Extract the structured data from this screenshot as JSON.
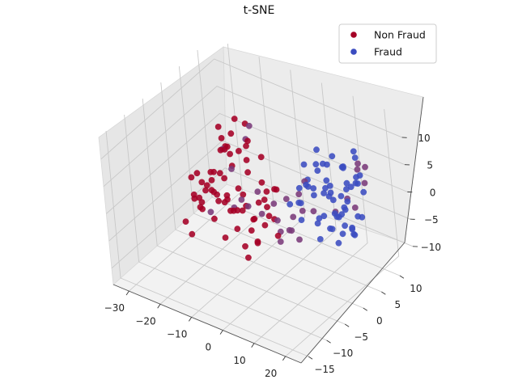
{
  "chart_data": {
    "type": "scatter",
    "projection": "3d",
    "title": "t-SNE",
    "xlabel": "",
    "ylabel": "",
    "zlabel": "",
    "xlim": [
      -35,
      25
    ],
    "ylim": [
      -17,
      14
    ],
    "zlim": [
      -13,
      14
    ],
    "x_ticks": [
      -30,
      -20,
      -10,
      0,
      10,
      20
    ],
    "y_ticks": [
      -15,
      -10,
      -5,
      0,
      5,
      10
    ],
    "z_ticks": [
      -10,
      -5,
      0,
      5,
      10
    ],
    "x_tick_labels": [
      "−30",
      "−20",
      "−10",
      "0",
      "10",
      "20"
    ],
    "y_tick_labels": [
      "−15",
      "−10",
      "−5",
      "0",
      "5",
      "10"
    ],
    "z_tick_labels": [
      "−10",
      "−5",
      "0",
      "5",
      "10"
    ],
    "grid": true,
    "legend_position": "top-right",
    "colors": {
      "Non Fraud": "#a50026",
      "Fraud": "#3b4cc0",
      "mixed": "#7a3a7a"
    },
    "series": [
      {
        "name": "Non Fraud",
        "color": "#a50026",
        "points": [
          [
            -25,
            -2,
            -3
          ],
          [
            -24,
            -1,
            -6
          ],
          [
            -23,
            0,
            -2
          ],
          [
            -22,
            -3,
            -4
          ],
          [
            -21,
            1,
            -5
          ],
          [
            -26,
            -4,
            -7
          ],
          [
            -24,
            2,
            -1
          ],
          [
            -22,
            -2,
            0
          ],
          [
            -20,
            0,
            -3
          ],
          [
            -23,
            -5,
            -8
          ],
          [
            -19,
            -2,
            -6
          ],
          [
            -21,
            3,
            -2
          ],
          [
            -18,
            1,
            -4
          ],
          [
            -25,
            1,
            -4
          ],
          [
            -20,
            -4,
            -2
          ],
          [
            -17,
            -3,
            0
          ],
          [
            -16,
            0,
            -5
          ],
          [
            -18,
            3,
            1
          ],
          [
            -22,
            4,
            -6
          ],
          [
            -19,
            -1,
            2
          ],
          [
            -15,
            -2,
            -2
          ],
          [
            -14,
            1,
            -1
          ],
          [
            -16,
            -4,
            3
          ],
          [
            -13,
            -1,
            -7
          ],
          [
            -17,
            2,
            4
          ],
          [
            -12,
            0,
            -4
          ],
          [
            -11,
            -3,
            -2
          ],
          [
            -13,
            3,
            1
          ],
          [
            -10,
            -1,
            0
          ],
          [
            -12,
            -5,
            -6
          ],
          [
            -14,
            4,
            5
          ],
          [
            -9,
            2,
            -3
          ],
          [
            -15,
            -5,
            2
          ],
          [
            -11,
            1,
            -8
          ],
          [
            -8,
            -2,
            -1
          ],
          [
            -18,
            -6,
            5
          ],
          [
            -16,
            2,
            8
          ],
          [
            -14,
            -2,
            10
          ],
          [
            -13,
            1,
            12
          ],
          [
            -15,
            0,
            7
          ],
          [
            -12,
            -3,
            9
          ],
          [
            -17,
            1,
            6
          ],
          [
            -11,
            2,
            11
          ],
          [
            -10,
            -1,
            8
          ],
          [
            -16,
            -1,
            11
          ],
          [
            -9,
            0,
            6
          ],
          [
            -13,
            -4,
            5
          ],
          [
            -20,
            2,
            4
          ],
          [
            -8,
            3,
            5
          ],
          [
            -12,
            3,
            7
          ],
          [
            -6,
            -2,
            -3
          ],
          [
            -5,
            0,
            -5
          ],
          [
            -7,
            2,
            -2
          ],
          [
            -4,
            -3,
            -6
          ],
          [
            -6,
            4,
            -1
          ],
          [
            -3,
            1,
            -4
          ],
          [
            -5,
            -5,
            -8
          ],
          [
            -2,
            -1,
            -2
          ],
          [
            -4,
            3,
            0
          ],
          [
            -7,
            -4,
            -7
          ],
          [
            -9,
            4,
            -5
          ],
          [
            -3,
            -4,
            -1
          ],
          [
            -8,
            0,
            -9
          ],
          [
            -1,
            0,
            -6
          ],
          [
            -6,
            1,
            2
          ],
          [
            -19,
            4,
            -8
          ],
          [
            -24,
            -3,
            1
          ],
          [
            -21,
            -5,
            -1
          ],
          [
            -26,
            0,
            -5
          ],
          [
            -10,
            5,
            -3
          ]
        ]
      },
      {
        "name": "Fraud",
        "color": "#3b4cc0",
        "points": [
          [
            8,
            2,
            4
          ],
          [
            9,
            4,
            6
          ],
          [
            7,
            0,
            2
          ],
          [
            10,
            3,
            8
          ],
          [
            11,
            1,
            5
          ],
          [
            6,
            3,
            7
          ],
          [
            9,
            -1,
            3
          ],
          [
            12,
            4,
            2
          ],
          [
            8,
            5,
            9
          ],
          [
            10,
            0,
            6
          ],
          [
            13,
            2,
            4
          ],
          [
            7,
            4,
            1
          ],
          [
            11,
            5,
            7
          ],
          [
            14,
            3,
            5
          ],
          [
            12,
            -1,
            8
          ],
          [
            9,
            6,
            3
          ],
          [
            15,
            1,
            6
          ],
          [
            13,
            5,
            9
          ],
          [
            10,
            6,
            1
          ],
          [
            16,
            4,
            3
          ],
          [
            12,
            8,
            5
          ],
          [
            14,
            7,
            2
          ],
          [
            11,
            9,
            4
          ],
          [
            15,
            6,
            7
          ],
          [
            13,
            9,
            1
          ],
          [
            17,
            5,
            5
          ],
          [
            16,
            8,
            3
          ],
          [
            14,
            10,
            6
          ],
          [
            18,
            7,
            4
          ],
          [
            15,
            9,
            8
          ],
          [
            8,
            8,
            -2
          ],
          [
            10,
            7,
            -4
          ],
          [
            12,
            6,
            -3
          ],
          [
            9,
            9,
            -5
          ],
          [
            11,
            8,
            -6
          ],
          [
            13,
            7,
            -2
          ],
          [
            7,
            6,
            -4
          ],
          [
            14,
            5,
            -5
          ],
          [
            12,
            9,
            -7
          ],
          [
            10,
            10,
            -3
          ],
          [
            15,
            7,
            -6
          ],
          [
            8,
            4,
            -3
          ],
          [
            16,
            6,
            -4
          ],
          [
            11,
            6,
            -8
          ],
          [
            13,
            10,
            -5
          ],
          [
            9,
            3,
            -6
          ],
          [
            17,
            8,
            -3
          ],
          [
            14,
            8,
            -7
          ],
          [
            12,
            4,
            -4
          ],
          [
            10,
            5,
            -5
          ],
          [
            6,
            1,
            -2
          ],
          [
            5,
            2,
            3
          ],
          [
            7,
            7,
            5
          ],
          [
            16,
            2,
            1
          ],
          [
            18,
            3,
            2
          ],
          [
            4,
            0,
            1
          ],
          [
            6,
            5,
            -5
          ],
          [
            15,
            10,
            3
          ],
          [
            17,
            9,
            1
          ],
          [
            19,
            6,
            6
          ]
        ]
      }
    ],
    "mixed_points": [
      [
        -16,
        1,
        -5
      ],
      [
        -12,
        0,
        -2
      ],
      [
        -9,
        2,
        -1
      ],
      [
        -14,
        -2,
        8
      ],
      [
        -10,
        1,
        9
      ],
      [
        -7,
        1,
        -4
      ],
      [
        -4,
        2,
        -2
      ],
      [
        -2,
        1,
        -4
      ],
      [
        0,
        0,
        -5
      ],
      [
        2,
        2,
        -3
      ],
      [
        1,
        -1,
        -6
      ],
      [
        -1,
        3,
        -1
      ],
      [
        3,
        0,
        -4
      ],
      [
        4,
        3,
        -2
      ],
      [
        5,
        -1,
        -3
      ],
      [
        2,
        4,
        0
      ],
      [
        6,
        0,
        -5
      ],
      [
        3,
        5,
        2
      ],
      [
        18,
        4,
        3
      ],
      [
        19,
        5,
        1
      ],
      [
        16,
        9,
        6
      ],
      [
        17,
        10,
        5
      ],
      [
        13,
        11,
        3
      ],
      [
        15,
        11,
        1
      ],
      [
        7,
        9,
        -5
      ],
      [
        5,
        5,
        -3
      ],
      [
        -6,
        -3,
        0
      ],
      [
        -20,
        -2,
        -5
      ],
      [
        -11,
        3,
        10
      ],
      [
        -13,
        -1,
        4
      ]
    ]
  },
  "legend": {
    "items": [
      {
        "label": "Non Fraud",
        "color": "#a50026"
      },
      {
        "label": "Fraud",
        "color": "#3b4cc0"
      }
    ]
  }
}
